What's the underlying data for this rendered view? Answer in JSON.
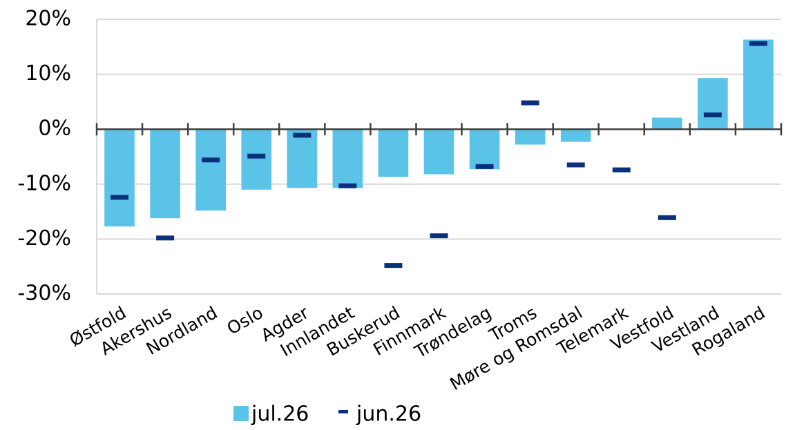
{
  "chart_data": {
    "type": "bar",
    "categories": [
      "Østfold",
      "Akershus",
      "Nordland",
      "Oslo",
      "Agder",
      "Innlandet",
      "Buskerud",
      "Finnmark",
      "Trøndelag",
      "Troms",
      "Møre og Romsdal",
      "Telemark",
      "Vestfold",
      "Vestland",
      "Rogaland"
    ],
    "series": [
      {
        "name": "jul.26",
        "type": "bar",
        "color": "#5bc3e8",
        "values": [
          -17.7,
          -16.2,
          -14.8,
          -11.0,
          -10.7,
          -10.7,
          -8.7,
          -8.2,
          -7.3,
          -2.8,
          -2.3,
          0,
          2.1,
          9.3,
          16.3
        ]
      },
      {
        "name": "jun.26",
        "type": "marker",
        "color": "#0a2f7d",
        "values": [
          -12.4,
          -19.8,
          -5.6,
          -4.9,
          -1.1,
          -10.3,
          -24.8,
          -19.4,
          -6.8,
          4.8,
          -6.5,
          -7.4,
          -16.1,
          2.6,
          15.6
        ]
      }
    ],
    "ylim": [
      -30,
      20
    ],
    "yticks": [
      {
        "value": -30,
        "label": "-30%"
      },
      {
        "value": -20,
        "label": "-20%"
      },
      {
        "value": -10,
        "label": "-10%"
      },
      {
        "value": 0,
        "label": "0%"
      },
      {
        "value": 10,
        "label": "10%"
      },
      {
        "value": 20,
        "label": "20%"
      }
    ],
    "grid": true,
    "legend": "bottom"
  }
}
